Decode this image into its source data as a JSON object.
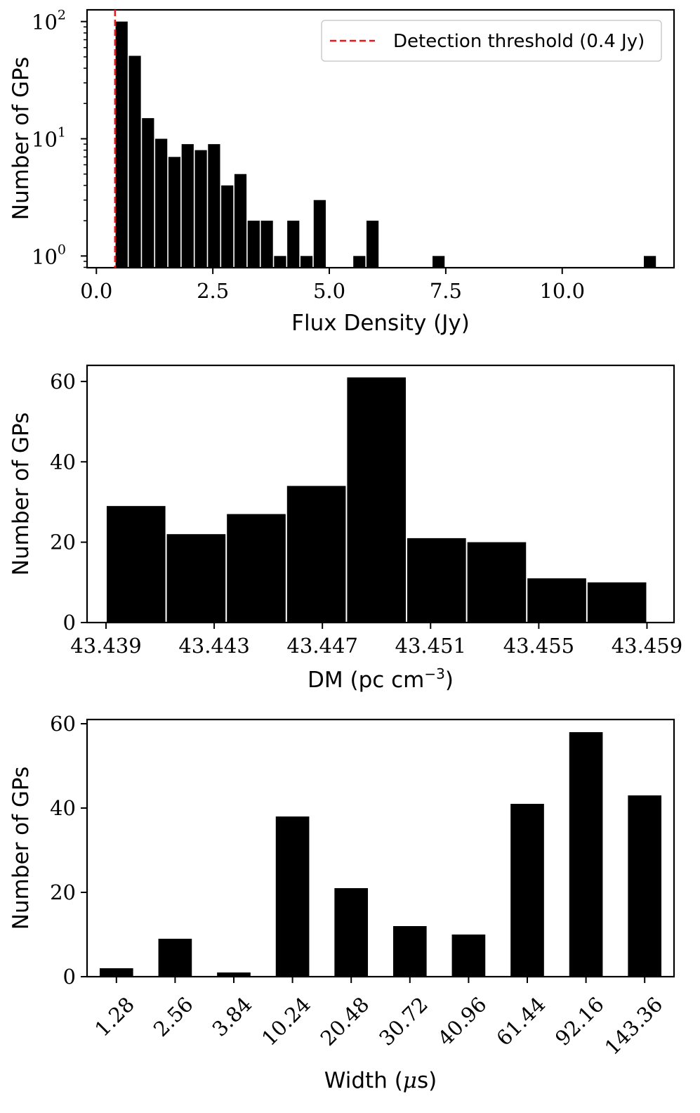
{
  "chart_data": [
    {
      "type": "bar",
      "id": "flux",
      "scale": "log",
      "xlabel": "Flux Density (Jy)",
      "ylabel": "Number of GPs",
      "xlim": [
        -0.2,
        12.4
      ],
      "ylim_log": [
        -0.1,
        2.1
      ],
      "xticks": [
        0.0,
        2.5,
        5.0,
        7.5,
        10.0
      ],
      "xtick_labels": [
        "0.0",
        "2.5",
        "5.0",
        "7.5",
        "10.0"
      ],
      "ytick_exponents": [
        0,
        1,
        2
      ],
      "ytick_labels": [
        "10",
        "10",
        "10"
      ],
      "ytick_sup": [
        "0",
        "1",
        "2"
      ],
      "bin_start": 0.4,
      "bin_width": 0.2835,
      "values": [
        100,
        51,
        15,
        10,
        7,
        9,
        8,
        9,
        4,
        5,
        2,
        2,
        1,
        2,
        1,
        3,
        0,
        0,
        1,
        2,
        0,
        0,
        0,
        0,
        1,
        0,
        0,
        0,
        0,
        0,
        0,
        0,
        0,
        0,
        0,
        0,
        0,
        0,
        0,
        0,
        1
      ],
      "threshold": 0.4,
      "legend_label": "Detection threshold (0.4 Jy)",
      "legend_position": "upper right",
      "threshold_color": "#e41a1c"
    },
    {
      "type": "bar",
      "id": "dm",
      "xlabel_main": "DM (pc cm",
      "xlabel_sup": "−3",
      "xlabel_end": ")",
      "ylabel": "Number of GPs",
      "xlim": [
        43.4383,
        43.46
      ],
      "ylim": [
        0,
        64
      ],
      "xticks": [
        43.439,
        43.443,
        43.447,
        43.451,
        43.455,
        43.459
      ],
      "xtick_labels": [
        "43.439",
        "43.443",
        "43.447",
        "43.451",
        "43.455",
        "43.459"
      ],
      "yticks": [
        0,
        20,
        40,
        60
      ],
      "ytick_labels": [
        "0",
        "20",
        "40",
        "60"
      ],
      "bin_start": 43.439,
      "bin_width": 0.0022222,
      "values": [
        29,
        22,
        27,
        34,
        61,
        21,
        20,
        11,
        10
      ]
    },
    {
      "type": "bar",
      "id": "width",
      "xlabel_main": "Width (",
      "xlabel_mu": "μ",
      "xlabel_end": "s)",
      "ylabel": "Number of GPs",
      "ylim": [
        0,
        61
      ],
      "yticks": [
        0,
        20,
        40,
        60
      ],
      "ytick_labels": [
        "0",
        "20",
        "40",
        "60"
      ],
      "categories": [
        "1.28",
        "2.56",
        "3.84",
        "10.24",
        "20.48",
        "30.72",
        "40.96",
        "61.44",
        "92.16",
        "143.36"
      ],
      "values": [
        2,
        9,
        1,
        38,
        21,
        12,
        10,
        41,
        58,
        43
      ]
    }
  ],
  "colors": {
    "bar": "#000000",
    "axis": "#000000",
    "threshold": "#e41a1c"
  }
}
